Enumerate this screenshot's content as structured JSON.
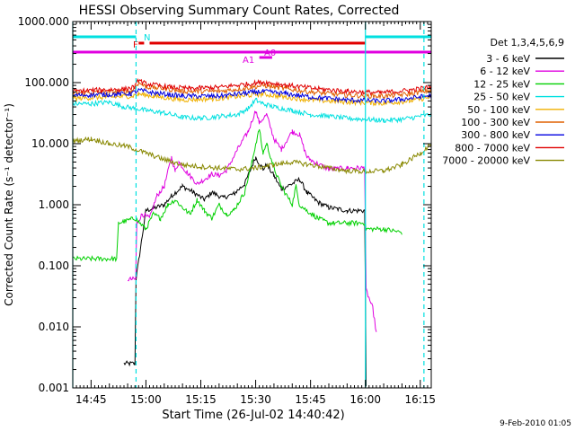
{
  "chart_data": {
    "type": "line",
    "title": "HESSI Observing Summary Count Rates, Corrected",
    "xlabel": "Start Time (26-Jul-02 14:40:42)",
    "ylabel": "Corrected Count Rate (s⁻¹ detector⁻¹)",
    "yscale": "log",
    "ylim": [
      0.001,
      1000
    ],
    "xlim_minutes_after_14_40": [
      0,
      98
    ],
    "x_tick_labels": [
      "14:45",
      "15:00",
      "15:15",
      "15:30",
      "15:45",
      "16:00",
      "16:15"
    ],
    "x_tick_minutes": [
      5,
      20,
      35,
      50,
      65,
      80,
      95
    ],
    "y_tick_labels": [
      "1000.000",
      "100.000",
      "10.000",
      "1.000",
      "0.100",
      "0.010",
      "0.001"
    ],
    "y_tick_values": [
      1000,
      100,
      10,
      1,
      0.1,
      0.01,
      0.001
    ],
    "legend_title": "Det 1,3,4,5,6,9",
    "legend_position": "right",
    "timestamp": "9-Feb-2010 01:05",
    "flag_bars": [
      {
        "label": "N",
        "color": "#00e0e0",
        "segments": [
          [
            0,
            17.3
          ],
          [
            80,
            98
          ]
        ]
      },
      {
        "label": "F",
        "color": "#e00000",
        "segments": [
          [
            18,
            19.5
          ],
          [
            21,
            80
          ]
        ]
      },
      {
        "label": "A0",
        "color": "#e000e0",
        "segments": [
          [
            51,
            54.5
          ]
        ]
      },
      {
        "label": "A1",
        "color": "#e000e0",
        "segments": []
      },
      {
        "label": "",
        "color": "#e000e0",
        "segments": [
          [
            0,
            98
          ]
        ]
      }
    ],
    "vlines": [
      {
        "x": 0,
        "color": "#00e0e0",
        "style": "solid"
      },
      {
        "x": 17.3,
        "color": "#00e0e0",
        "style": "dashed"
      },
      {
        "x": 80,
        "color": "#00e0e0",
        "style": "solid"
      },
      {
        "x": 96,
        "color": "#00e0e0",
        "style": "dashed"
      }
    ],
    "series": [
      {
        "name": "3 - 6 keV",
        "color": "#000000",
        "points": [
          [
            14,
            0.0025
          ],
          [
            17,
            0.0025
          ],
          [
            17.3,
            0.06
          ],
          [
            20,
            0.8
          ],
          [
            25,
            1.0
          ],
          [
            27,
            1.4
          ],
          [
            30,
            2.0
          ],
          [
            33,
            1.6
          ],
          [
            36,
            1.2
          ],
          [
            38,
            1.6
          ],
          [
            41,
            1.3
          ],
          [
            44,
            1.5
          ],
          [
            47,
            2.2
          ],
          [
            50,
            6.0
          ],
          [
            52,
            3.8
          ],
          [
            53,
            4.5
          ],
          [
            55,
            3.0
          ],
          [
            57,
            1.8
          ],
          [
            60,
            2.2
          ],
          [
            62,
            2.6
          ],
          [
            64,
            1.6
          ],
          [
            67,
            1.1
          ],
          [
            70,
            0.9
          ],
          [
            75,
            0.8
          ],
          [
            79.8,
            0.8
          ],
          [
            80,
            0.04
          ],
          [
            80.2,
            0.001
          ]
        ]
      },
      {
        "name": "6 - 12 keV",
        "color": "#e000e0",
        "points": [
          [
            15,
            0.06
          ],
          [
            17.2,
            0.06
          ],
          [
            17.5,
            0.5
          ],
          [
            19,
            0.7
          ],
          [
            21,
            0.6
          ],
          [
            23,
            1.4
          ],
          [
            25,
            2.0
          ],
          [
            27,
            6.0
          ],
          [
            28,
            3.5
          ],
          [
            29,
            5.0
          ],
          [
            31,
            3.5
          ],
          [
            34,
            2.2
          ],
          [
            36,
            2.6
          ],
          [
            38,
            3.2
          ],
          [
            40,
            3.0
          ],
          [
            42,
            3.6
          ],
          [
            45,
            8.0
          ],
          [
            48,
            16.0
          ],
          [
            50,
            35.0
          ],
          [
            51,
            22.0
          ],
          [
            53,
            30.0
          ],
          [
            55,
            12.0
          ],
          [
            57,
            8.0
          ],
          [
            60,
            16.0
          ],
          [
            62,
            14.0
          ],
          [
            64,
            6.0
          ],
          [
            66,
            5.0
          ],
          [
            70,
            3.8
          ],
          [
            75,
            4.0
          ],
          [
            79.8,
            4.0
          ],
          [
            80.2,
            0.04
          ],
          [
            82,
            0.02
          ],
          [
            83,
            0.008
          ]
        ]
      },
      {
        "name": "12 - 25 keV",
        "color": "#00d000",
        "points": [
          [
            0,
            0.13
          ],
          [
            12,
            0.13
          ],
          [
            12.5,
            0.5
          ],
          [
            17,
            0.6
          ],
          [
            20,
            0.4
          ],
          [
            22,
            0.7
          ],
          [
            24,
            0.6
          ],
          [
            26,
            1.0
          ],
          [
            28,
            1.2
          ],
          [
            30,
            0.9
          ],
          [
            32,
            0.7
          ],
          [
            34,
            1.2
          ],
          [
            36,
            0.8
          ],
          [
            38,
            0.6
          ],
          [
            40,
            1.0
          ],
          [
            42,
            0.7
          ],
          [
            44,
            0.8
          ],
          [
            47,
            1.6
          ],
          [
            49,
            5.0
          ],
          [
            50,
            10.0
          ],
          [
            51,
            17.0
          ],
          [
            52,
            7.0
          ],
          [
            53,
            10.0
          ],
          [
            55,
            4.0
          ],
          [
            57,
            2.0
          ],
          [
            60,
            1.0
          ],
          [
            61,
            2.0
          ],
          [
            62,
            1.0
          ],
          [
            64,
            0.8
          ],
          [
            67,
            0.6
          ],
          [
            70,
            0.5
          ],
          [
            75,
            0.5
          ],
          [
            79.8,
            0.5
          ],
          [
            80.2,
            0.4
          ],
          [
            85,
            0.4
          ],
          [
            90,
            0.35
          ]
        ]
      },
      {
        "name": "25 - 50 keV",
        "color": "#00e0e0",
        "points": [
          [
            0,
            45
          ],
          [
            5,
            45
          ],
          [
            10,
            48
          ],
          [
            14,
            40
          ],
          [
            17,
            38
          ],
          [
            20,
            35
          ],
          [
            25,
            32
          ],
          [
            30,
            27
          ],
          [
            35,
            26
          ],
          [
            40,
            28
          ],
          [
            45,
            30
          ],
          [
            48,
            38
          ],
          [
            50,
            52
          ],
          [
            52,
            45
          ],
          [
            55,
            40
          ],
          [
            60,
            35
          ],
          [
            65,
            30
          ],
          [
            70,
            28
          ],
          [
            75,
            26
          ],
          [
            80,
            25
          ],
          [
            85,
            24
          ],
          [
            90,
            25
          ],
          [
            95,
            28
          ],
          [
            98,
            30
          ]
        ]
      },
      {
        "name": "50 - 100 keV",
        "color": "#f0b000",
        "points": [
          [
            0,
            55
          ],
          [
            10,
            58
          ],
          [
            16,
            60
          ],
          [
            18,
            65
          ],
          [
            22,
            60
          ],
          [
            30,
            52
          ],
          [
            40,
            55
          ],
          [
            48,
            62
          ],
          [
            52,
            65
          ],
          [
            58,
            58
          ],
          [
            65,
            52
          ],
          [
            75,
            48
          ],
          [
            85,
            46
          ],
          [
            92,
            50
          ],
          [
            98,
            58
          ]
        ]
      },
      {
        "name": "100 - 300 keV",
        "color": "#e06000",
        "points": [
          [
            0,
            68
          ],
          [
            10,
            70
          ],
          [
            16,
            72
          ],
          [
            18,
            100
          ],
          [
            20,
            85
          ],
          [
            25,
            80
          ],
          [
            30,
            72
          ],
          [
            40,
            72
          ],
          [
            48,
            82
          ],
          [
            52,
            90
          ],
          [
            58,
            80
          ],
          [
            65,
            70
          ],
          [
            75,
            62
          ],
          [
            85,
            60
          ],
          [
            92,
            65
          ],
          [
            98,
            75
          ]
        ]
      },
      {
        "name": "300 - 800 keV",
        "color": "#0000e0",
        "points": [
          [
            0,
            62
          ],
          [
            10,
            64
          ],
          [
            16,
            66
          ],
          [
            18,
            75
          ],
          [
            22,
            68
          ],
          [
            30,
            60
          ],
          [
            40,
            60
          ],
          [
            48,
            68
          ],
          [
            52,
            72
          ],
          [
            58,
            66
          ],
          [
            65,
            58
          ],
          [
            75,
            52
          ],
          [
            85,
            50
          ],
          [
            92,
            55
          ],
          [
            98,
            62
          ]
        ]
      },
      {
        "name": "800 - 7000 keV",
        "color": "#e00000",
        "points": [
          [
            0,
            72
          ],
          [
            8,
            76
          ],
          [
            14,
            78
          ],
          [
            17,
            85
          ],
          [
            18,
            110
          ],
          [
            20,
            95
          ],
          [
            26,
            85
          ],
          [
            32,
            80
          ],
          [
            40,
            84
          ],
          [
            48,
            95
          ],
          [
            52,
            102
          ],
          [
            58,
            92
          ],
          [
            66,
            80
          ],
          [
            75,
            72
          ],
          [
            84,
            68
          ],
          [
            92,
            75
          ],
          [
            98,
            85
          ]
        ]
      },
      {
        "name": "7000 - 20000 keV",
        "color": "#888800",
        "points": [
          [
            0,
            11
          ],
          [
            5,
            12
          ],
          [
            10,
            10
          ],
          [
            15,
            9
          ],
          [
            20,
            7
          ],
          [
            25,
            5.5
          ],
          [
            30,
            4.5
          ],
          [
            35,
            4.2
          ],
          [
            40,
            4.0
          ],
          [
            45,
            3.8
          ],
          [
            50,
            4.0
          ],
          [
            55,
            4.5
          ],
          [
            60,
            5.0
          ],
          [
            65,
            4.5
          ],
          [
            70,
            4.0
          ],
          [
            75,
            3.6
          ],
          [
            80,
            3.5
          ],
          [
            85,
            3.6
          ],
          [
            90,
            4.5
          ],
          [
            95,
            7.0
          ],
          [
            98,
            10.0
          ]
        ]
      }
    ]
  }
}
